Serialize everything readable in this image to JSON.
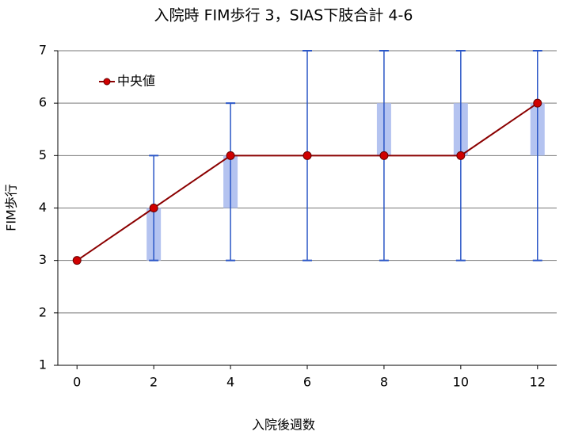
{
  "chart_data": {
    "type": "line",
    "title": "入院時 FIM歩行 3，SIAS下肢合計 4-6",
    "x_label": "入院後週数",
    "y_label": "FIM歩行",
    "x": [
      0,
      2,
      4,
      6,
      8,
      10,
      12
    ],
    "series": [
      {
        "name": "中央値",
        "color": "#8b0000",
        "values": [
          3,
          4,
          5,
          5,
          5,
          5,
          6
        ]
      }
    ],
    "range": {
      "color": "#2a56c6",
      "low": [
        null,
        3,
        3,
        3,
        3,
        3,
        3
      ],
      "high": [
        null,
        5,
        6,
        7,
        7,
        7,
        7
      ]
    },
    "iqr": {
      "color": "#b4c3f0",
      "q1": [
        null,
        3,
        4,
        5,
        5,
        5,
        5
      ],
      "q3": [
        null,
        4,
        5,
        5,
        6,
        6,
        6
      ]
    },
    "xlim": [
      -0.5,
      12.5
    ],
    "xticks": [
      0,
      2,
      4,
      6,
      8,
      10,
      12
    ],
    "ylim": [
      1,
      7
    ],
    "yticks": [
      1,
      2,
      3,
      4,
      5,
      6,
      7
    ],
    "grid": true,
    "legend": "upper left"
  }
}
